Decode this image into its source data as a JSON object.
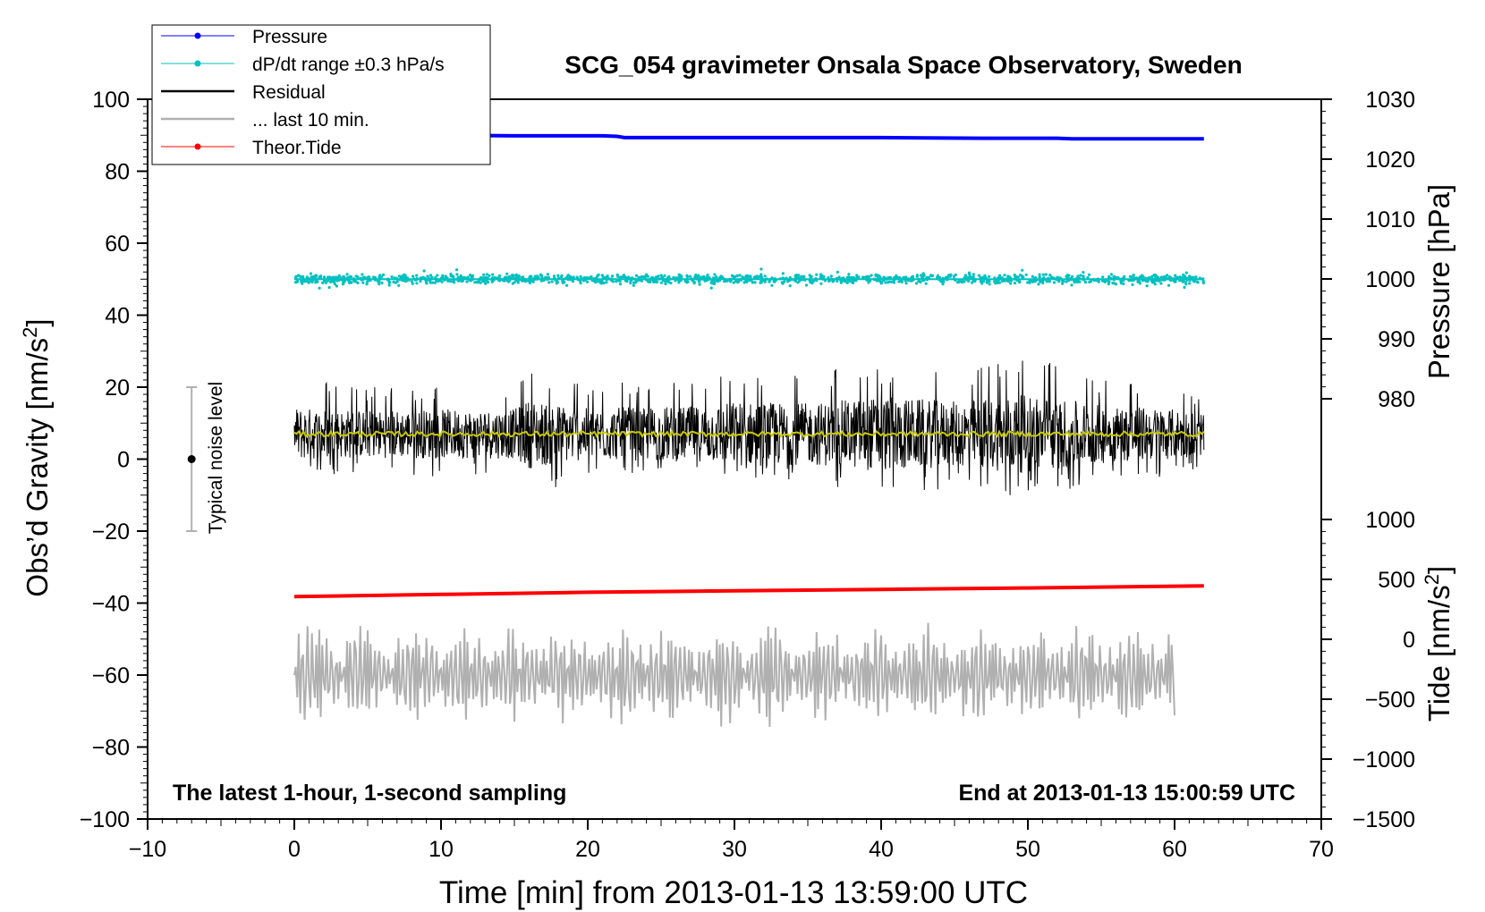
{
  "chart_data": {
    "type": "line",
    "title": "SCG_054 gravimeter Onsala Space Observatory, Sweden",
    "xlabel": "Time [min] from 2013-01-13 13:59:00 UTC",
    "ylabel_left_main": "Obs’d Gravity [nm/s",
    "ylabel_left_sup": "2",
    "ylabel_left_end": "]",
    "ylabel_right_pressure": "Pressure [hPa]",
    "ylabel_right_tide_main": "Tide [nm/s",
    "ylabel_right_tide_sup": "2",
    "ylabel_right_tide_end": "]",
    "xlim": [
      -10,
      70
    ],
    "ylim": [
      -100,
      100
    ],
    "pressure_lim": [
      970,
      1030
    ],
    "tide_lim": [
      -1500,
      4500
    ],
    "x_ticks": [
      -10,
      0,
      10,
      20,
      30,
      40,
      50,
      60,
      70
    ],
    "x_tick_labels": [
      "−10",
      "0",
      "10",
      "20",
      "30",
      "40",
      "50",
      "60",
      "70"
    ],
    "y_ticks": [
      -100,
      -80,
      -60,
      -40,
      -20,
      0,
      20,
      40,
      60,
      80,
      100
    ],
    "y_tick_labels": [
      "−100",
      "−80",
      "−60",
      "−40",
      "−20",
      "0",
      "20",
      "40",
      "60",
      "80",
      "100"
    ],
    "pressure_ticks": [
      980,
      990,
      1000,
      1010,
      1020,
      1030
    ],
    "pressure_tick_labels": [
      "980",
      "990",
      "1000",
      "1010",
      "1020",
      "1030"
    ],
    "tide_ticks": [
      -1500,
      -1000,
      -500,
      0,
      500,
      1000
    ],
    "tide_tick_labels": [
      "−1500",
      "−1000",
      "−500",
      "0",
      "500",
      "1000"
    ],
    "annotation_left": "The latest 1-hour, 1-second sampling",
    "annotation_right": "End at 2013-01-13 15:00:59 UTC",
    "noise_bar": {
      "x": -7,
      "center": 0,
      "low": -20,
      "high": 20,
      "label": "Typical noise level"
    },
    "legend": [
      {
        "label": "Pressure",
        "color": "#0000ff",
        "style": "line-marker"
      },
      {
        "label": "dP/dt range ±0.3 hPa/s",
        "color": "#00c0c0",
        "style": "line-marker"
      },
      {
        "label": "Residual",
        "color": "#000000",
        "style": "line"
      },
      {
        "label": "... last 10 min.",
        "color": "#b0b0b0",
        "style": "line"
      },
      {
        "label": "Theor.Tide",
        "color": "#ff0000",
        "style": "line-marker"
      }
    ],
    "series": [
      {
        "name": "Pressure",
        "color": "#0000ff",
        "axis": "pressure",
        "x": [
          0,
          5,
          10,
          15,
          20,
          21,
          22,
          22.5,
          30,
          40,
          47,
          48,
          52,
          53,
          62
        ],
        "values": [
          1024.0,
          1024.0,
          1024.0,
          1023.9,
          1023.9,
          1023.9,
          1023.8,
          1023.6,
          1023.6,
          1023.6,
          1023.5,
          1023.5,
          1023.5,
          1023.4,
          1023.4
        ]
      },
      {
        "name": "dP/dt range ±0.3 hPa/s",
        "color": "#00c0c0",
        "axis": "left",
        "x": [
          0,
          62
        ],
        "values": [
          50,
          50
        ],
        "spread": 1.5
      },
      {
        "name": "Residual",
        "color": "#000000",
        "axis": "left",
        "x": [
          0,
          5,
          10,
          15,
          16,
          20,
          25,
          28,
          30,
          35,
          40,
          45,
          50,
          55,
          60,
          62
        ],
        "values_min": [
          -5,
          -4,
          -5,
          -4,
          -11,
          -4,
          -5,
          -4,
          -6,
          -7,
          -11,
          -8,
          -11,
          -7,
          -5,
          -4
        ],
        "values_max": [
          22,
          20,
          20,
          21,
          24,
          22,
          23,
          24,
          27,
          24,
          27,
          25,
          29,
          23,
          20,
          18
        ]
      },
      {
        "name": "Residual mean",
        "color": "#c8c800",
        "axis": "left",
        "x": [
          0,
          62
        ],
        "values": [
          7,
          7
        ]
      },
      {
        "name": "Theor.Tide",
        "color": "#ff0000",
        "axis": "left",
        "x": [
          0,
          10,
          20,
          30,
          40,
          50,
          62
        ],
        "values": [
          -38.2,
          -37.6,
          -37.0,
          -36.6,
          -36.2,
          -35.8,
          -35.2
        ]
      },
      {
        "name": "... last 10 min.",
        "color": "#b0b0b0",
        "axis": "left",
        "x": [
          0,
          60
        ],
        "center": -60,
        "amplitude_max": 15
      }
    ]
  }
}
